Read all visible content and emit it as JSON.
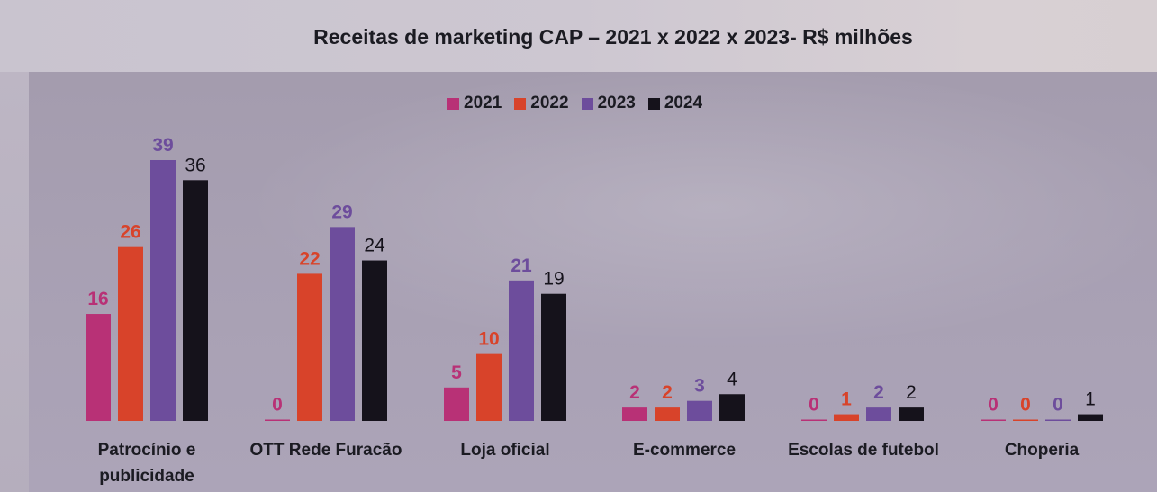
{
  "chart_data": {
    "type": "bar",
    "title": "Receitas de marketing CAP – 2021 x 2022 x 2023- R$ milhões",
    "categories": [
      "Patrocínio e\npublicidade",
      "OTT Rede Furacão",
      "Loja oficial",
      "E-commerce",
      "Escolas de futebol",
      "Choperia"
    ],
    "series": [
      {
        "name": "2021",
        "color": "#b83176",
        "values": [
          16,
          0,
          5,
          2,
          0,
          0
        ]
      },
      {
        "name": "2022",
        "color": "#d8432a",
        "values": [
          26,
          22,
          10,
          2,
          1,
          0
        ]
      },
      {
        "name": "2023",
        "color": "#6d4d9c",
        "values": [
          39,
          29,
          21,
          3,
          2,
          0
        ]
      },
      {
        "name": "2024",
        "color": "#15121b",
        "values": [
          36,
          24,
          19,
          4,
          2,
          1
        ]
      }
    ],
    "xlabel": "",
    "ylabel": "",
    "ylim": [
      0,
      39
    ],
    "legend_position": "top-center",
    "grid": false
  }
}
